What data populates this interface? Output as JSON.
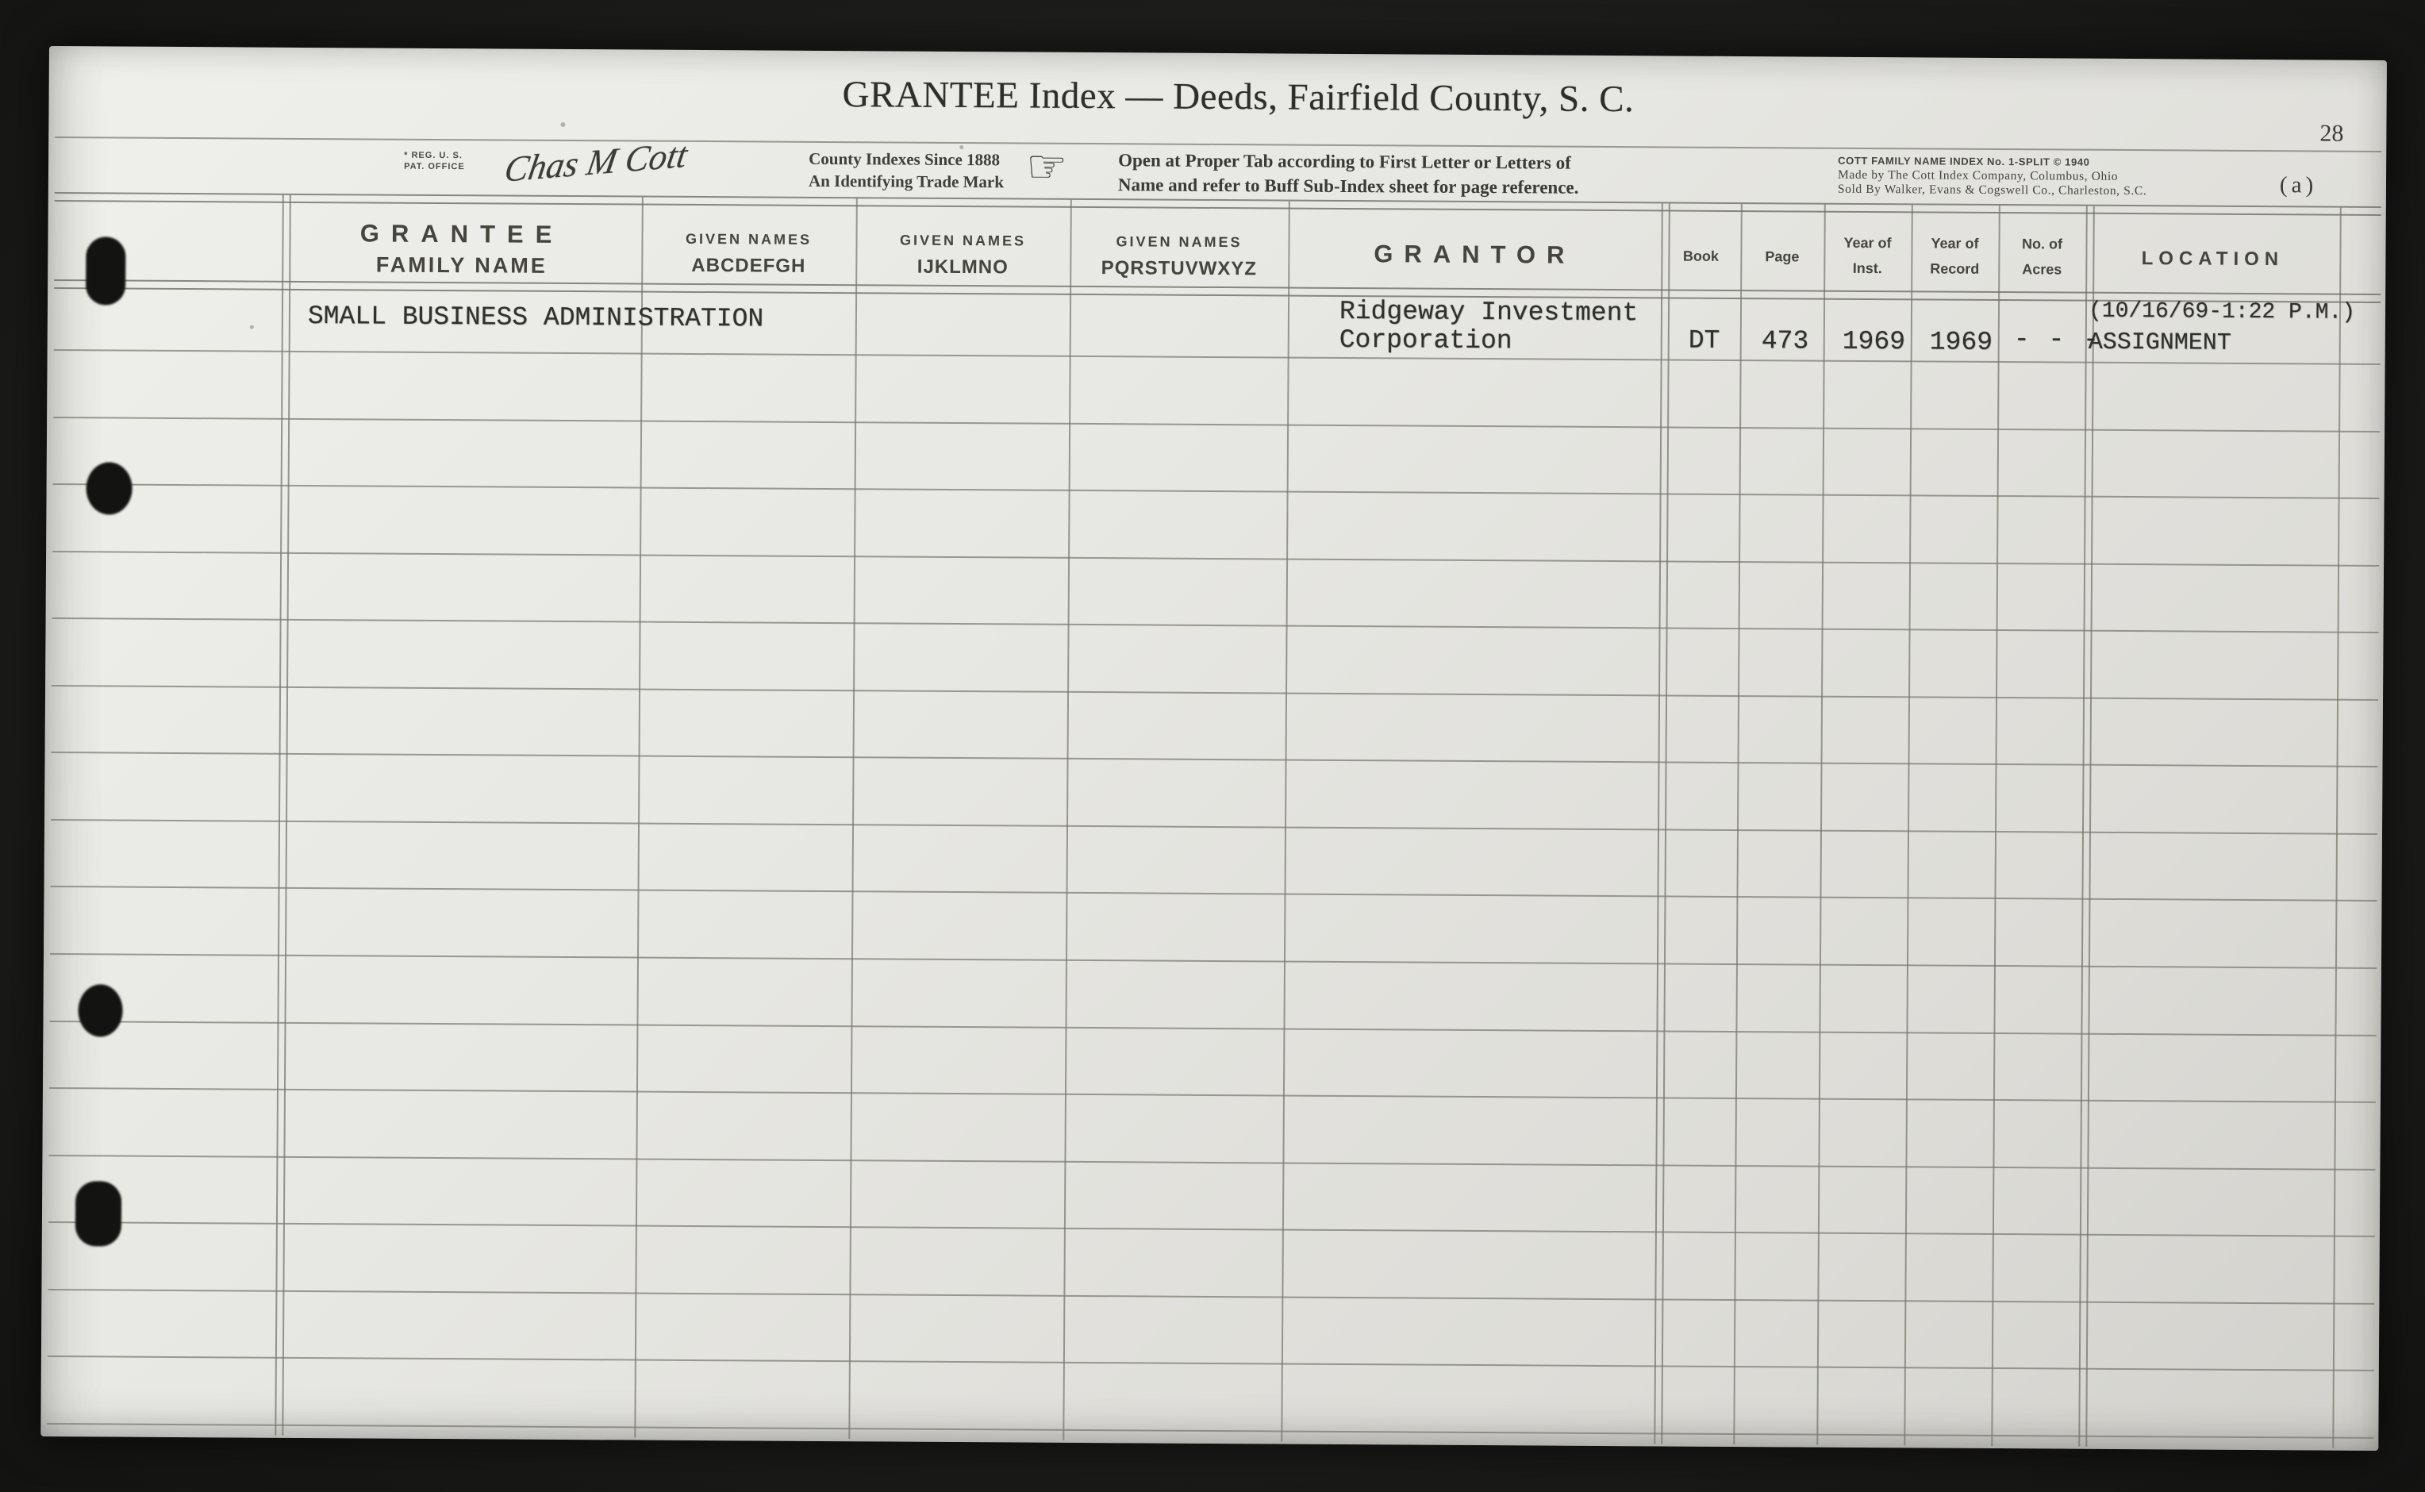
{
  "page": {
    "title": "GRANTEE Index — Deeds, Fairfield County, S. C.",
    "page_number": "28",
    "sheet_label": "(a)"
  },
  "subheader": {
    "reg_line1": "* REG. U. S.",
    "reg_line2": "PAT. OFFICE",
    "signature": "Chas M Cott",
    "trademark_line1": "County Indexes Since 1888",
    "trademark_line2": "An Identifying Trade Mark",
    "hand_icon": "☞",
    "instruction_line1": "Open at Proper Tab according to First Letter or Letters of",
    "instruction_line2": "Name and refer to Buff Sub-Index sheet for page reference.",
    "maker_line1": "COTT FAMILY NAME INDEX No. 1-SPLIT © 1940",
    "maker_line2": "Made by The Cott Index Company, Columbus, Ohio",
    "maker_line3": "Sold By Walker, Evans & Cogswell Co., Charleston, S.C."
  },
  "table": {
    "ruled_row_count": 17,
    "columns": [
      {
        "line1": "GRANTEE",
        "line2": "FAMILY NAME"
      },
      {
        "line1": "GIVEN NAMES",
        "line2": "ABCDEFGH"
      },
      {
        "line1": "GIVEN NAMES",
        "line2": "IJKLMNO"
      },
      {
        "line1": "GIVEN NAMES",
        "line2": "PQRSTUVWXYZ"
      },
      {
        "line1": "GRANTOR",
        "line2": ""
      },
      {
        "line1": "Book",
        "line2": ""
      },
      {
        "line1": "Page",
        "line2": ""
      },
      {
        "line1": "Year of",
        "line2": "Inst."
      },
      {
        "line1": "Year of",
        "line2": "Record"
      },
      {
        "line1": "No. of",
        "line2": "Acres"
      },
      {
        "line1": "LOCATION",
        "line2": ""
      }
    ],
    "entry": {
      "family_name": "SMALL BUSINESS ADMINISTRATION",
      "grantor_line1": "Ridgeway Investment",
      "grantor_line2": "Corporation",
      "book": "DT",
      "page": "473",
      "year_of_inst": "1969",
      "year_of_record": "1969",
      "acres": "- - -",
      "location_line1": "(10/16/69-1:22 P.M.)",
      "location_line2": "ASSIGNMENT"
    }
  }
}
